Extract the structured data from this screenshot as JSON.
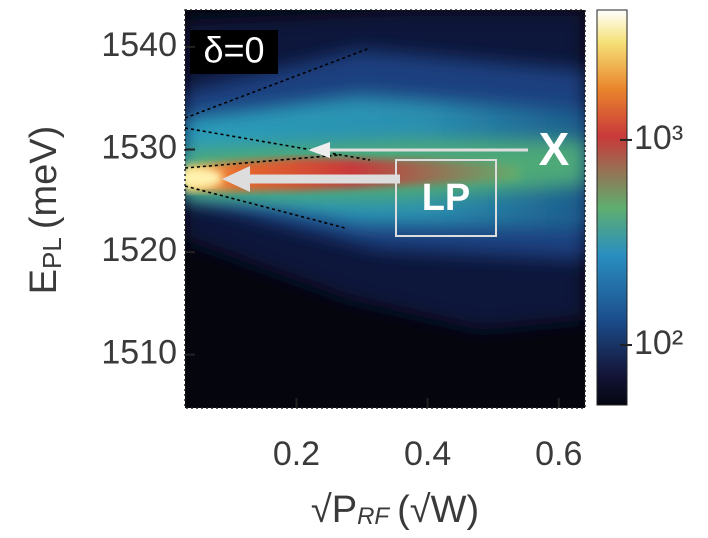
{
  "chart_data": {
    "type": "heatmap",
    "annotations": {
      "panel": "δ=0",
      "exciton": "X",
      "polariton": "LP"
    },
    "xlabel": {
      "root": "√",
      "main": "P",
      "sub": "RF",
      "unit": "(√W)"
    },
    "ylabel": {
      "main": "E",
      "sub": "PL",
      "unit": "(meV)"
    },
    "xlim": [
      0.03,
      0.64
    ],
    "xticks": [
      0.2,
      0.4,
      0.6
    ],
    "ylim": [
      1504.8,
      1543.6
    ],
    "yticks": [
      1510,
      1520,
      1530,
      1540
    ],
    "colorbar": {
      "scale": "log",
      "lim": [
        51,
        4300
      ],
      "ticks": [
        {
          "value": 100,
          "label": "10²"
        },
        {
          "value": 1000,
          "label": "10³"
        }
      ]
    }
  }
}
